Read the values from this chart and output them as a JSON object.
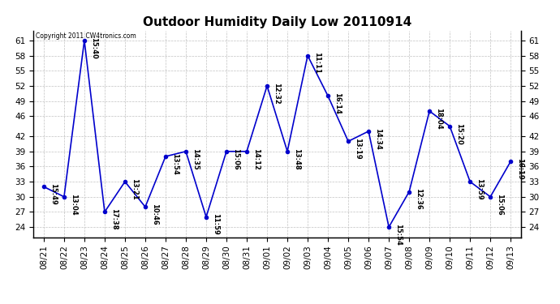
{
  "title": "Outdoor Humidity Daily Low 20110914",
  "copyright": "Copyright 2011 CW4tronics.com",
  "x_labels": [
    "08/21",
    "08/22",
    "08/23",
    "08/24",
    "08/25",
    "08/26",
    "08/27",
    "08/28",
    "08/29",
    "08/30",
    "08/31",
    "09/01",
    "09/02",
    "09/03",
    "09/04",
    "09/05",
    "09/06",
    "09/07",
    "09/08",
    "09/09",
    "09/10",
    "09/11",
    "09/12",
    "09/13"
  ],
  "y_values": [
    32,
    30,
    61,
    27,
    33,
    28,
    38,
    39,
    26,
    39,
    39,
    52,
    39,
    58,
    50,
    41,
    43,
    24,
    31,
    47,
    44,
    33,
    30,
    37
  ],
  "point_labels": [
    "15:49",
    "13:04",
    "15:40",
    "17:38",
    "13:21",
    "10:46",
    "13:54",
    "14:35",
    "11:59",
    "15:06",
    "14:12",
    "12:32",
    "13:48",
    "11:11",
    "16:14",
    "13:19",
    "14:34",
    "15:54",
    "12:36",
    "18:04",
    "15:20",
    "13:59",
    "15:06",
    "16:19"
  ],
  "line_color": "#0000cc",
  "marker_color": "#0000cc",
  "bg_color": "#ffffff",
  "grid_color": "#bbbbbb",
  "ylim_min": 22,
  "ylim_max": 63,
  "yticks": [
    24,
    27,
    30,
    33,
    36,
    39,
    42,
    46,
    49,
    52,
    55,
    58,
    61
  ],
  "title_fontsize": 11,
  "label_fontsize": 6.0,
  "tick_fontsize": 7.5
}
